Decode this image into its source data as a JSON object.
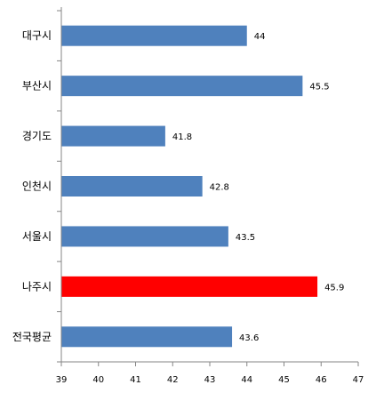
{
  "chart_data": {
    "type": "bar",
    "orientation": "horizontal",
    "categories": [
      "대구시",
      "부산시",
      "경기도",
      "인천시",
      "서울시",
      "나주시",
      "전국평균"
    ],
    "values": [
      44,
      45.5,
      41.8,
      42.8,
      43.5,
      45.9,
      43.6
    ],
    "value_labels": [
      "44",
      "45.5",
      "41.8",
      "42.8",
      "43.5",
      "45.9",
      "43.6"
    ],
    "highlight_category": "나주시",
    "colors": {
      "bar": "#4f81bd",
      "highlight": "#ff0000",
      "axis": "#868686"
    },
    "xlim": [
      39,
      47
    ],
    "xticks": [
      39,
      40,
      41,
      42,
      43,
      44,
      45,
      46,
      47
    ],
    "grid": false,
    "legend": "none",
    "title": "",
    "xlabel": "",
    "ylabel": ""
  }
}
